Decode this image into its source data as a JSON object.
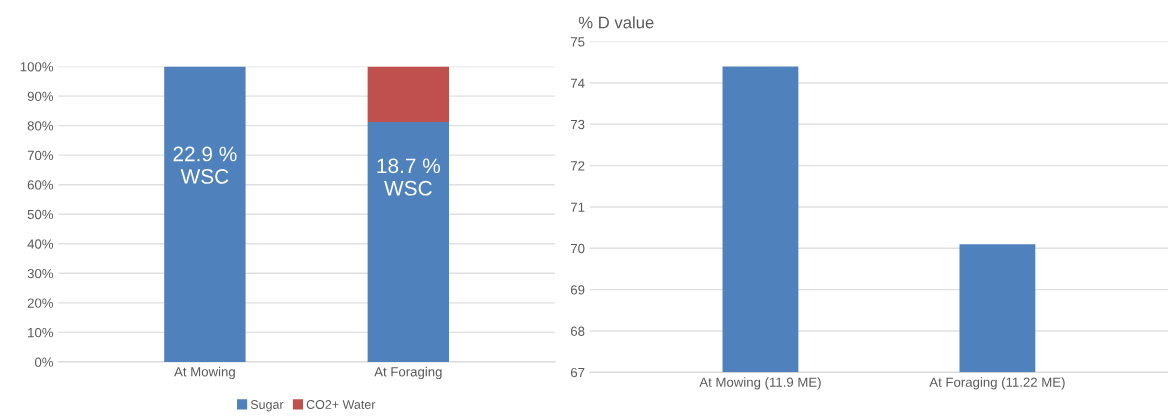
{
  "chart_data": [
    {
      "type": "bar",
      "stacked": true,
      "categories": [
        "At Mowing",
        "At Foraging"
      ],
      "series": [
        {
          "name": "Sugar",
          "color": "#4f81bd",
          "values": [
            100,
            81.2
          ]
        },
        {
          "name": "CO2+ Water",
          "color": "#c0504d",
          "values": [
            0,
            18.8
          ]
        }
      ],
      "ylim": [
        0,
        100
      ],
      "yticks": [
        {
          "value": 0,
          "label": "0%"
        },
        {
          "value": 10,
          "label": "10%"
        },
        {
          "value": 20,
          "label": "20%"
        },
        {
          "value": 30,
          "label": "30%"
        },
        {
          "value": 40,
          "label": "40%"
        },
        {
          "value": 50,
          "label": "50%"
        },
        {
          "value": 60,
          "label": "60%"
        },
        {
          "value": 70,
          "label": "70%"
        },
        {
          "value": 80,
          "label": "80%"
        },
        {
          "value": 90,
          "label": "90%"
        },
        {
          "value": 100,
          "label": "100%"
        }
      ],
      "grid": "y",
      "legend": "bottom",
      "annotations": [
        "22.9 %\nWSC",
        "18.7 %\nWSC"
      ]
    },
    {
      "type": "bar",
      "categories": [
        "At Mowing (11.9 ME)",
        "At Foraging (11.22 ME)"
      ],
      "series": [
        {
          "color": "#4f81bd",
          "values": [
            74.4,
            70.1
          ]
        }
      ],
      "ylabel": "% D value",
      "ylim": [
        67,
        75
      ],
      "yticks": [
        67,
        68,
        69,
        70,
        71,
        72,
        73,
        74,
        75
      ],
      "grid": "y",
      "legend": false
    }
  ]
}
